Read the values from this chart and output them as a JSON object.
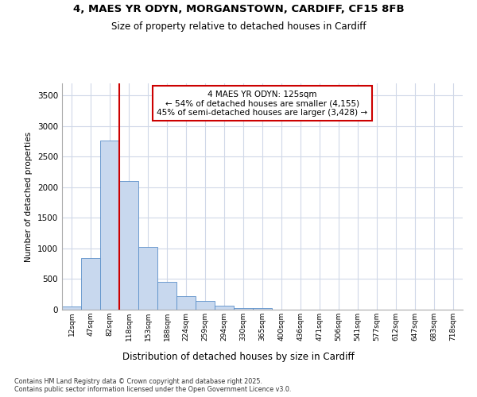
{
  "title_line1": "4, MAES YR ODYN, MORGANSTOWN, CARDIFF, CF15 8FB",
  "title_line2": "Size of property relative to detached houses in Cardiff",
  "xlabel": "Distribution of detached houses by size in Cardiff",
  "ylabel": "Number of detached properties",
  "categories": [
    "12sqm",
    "47sqm",
    "82sqm",
    "118sqm",
    "153sqm",
    "188sqm",
    "224sqm",
    "259sqm",
    "294sqm",
    "330sqm",
    "365sqm",
    "400sqm",
    "436sqm",
    "471sqm",
    "506sqm",
    "541sqm",
    "577sqm",
    "612sqm",
    "647sqm",
    "683sqm",
    "718sqm"
  ],
  "values": [
    55,
    850,
    2770,
    2100,
    1030,
    460,
    220,
    145,
    65,
    30,
    20,
    5,
    0,
    0,
    0,
    0,
    0,
    0,
    0,
    0,
    0
  ],
  "bar_fill_color": "#c8d8ee",
  "bar_edge_color": "#5b8fc9",
  "vline_x_index": 3,
  "vline_color": "#cc0000",
  "annotation_title": "4 MAES YR ODYN: 125sqm",
  "annotation_line1": "← 54% of detached houses are smaller (4,155)",
  "annotation_line2": "45% of semi-detached houses are larger (3,428) →",
  "annotation_box_facecolor": "#ffffff",
  "annotation_box_edgecolor": "#cc0000",
  "ylim": [
    0,
    3700
  ],
  "yticks": [
    0,
    500,
    1000,
    1500,
    2000,
    2500,
    3000,
    3500
  ],
  "footer_line1": "Contains HM Land Registry data © Crown copyright and database right 2025.",
  "footer_line2": "Contains public sector information licensed under the Open Government Licence v3.0.",
  "fig_facecolor": "#ffffff",
  "axes_facecolor": "#ffffff",
  "grid_color": "#d0d8e8"
}
